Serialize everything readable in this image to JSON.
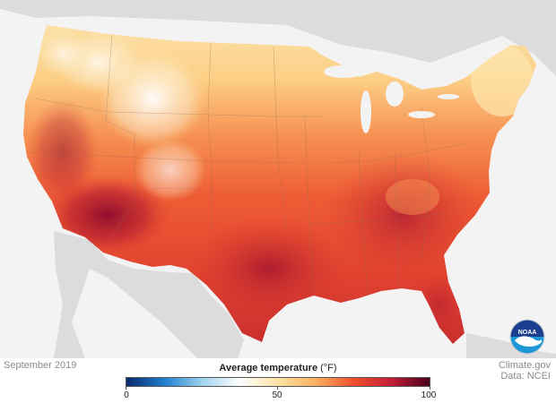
{
  "period": "September 2019",
  "legend": {
    "title": "Average temperature",
    "unit": "(°F)",
    "min_label": "0",
    "mid_label": "50",
    "max_label": "100",
    "range": [
      0,
      100
    ],
    "gradient": [
      "#0b2a6a",
      "#1f7fd0",
      "#9fd3f0",
      "#ffffff",
      "#fde3a4",
      "#fbb061",
      "#f0502d",
      "#c21e36",
      "#4a0019"
    ]
  },
  "credit": {
    "line1": "Climate.gov",
    "line2": "Data: NCEI"
  },
  "logo": {
    "text": "NOAA",
    "icon": "noaa-logo-icon"
  },
  "colors": {
    "ocean": "#f3f3f3",
    "land": "#dcdcdc",
    "cool": "#fde6ae",
    "mild": "#f9b86b",
    "warm": "#f06e3c",
    "hot": "#d93a2c",
    "hottest": "#8f0f2e"
  }
}
